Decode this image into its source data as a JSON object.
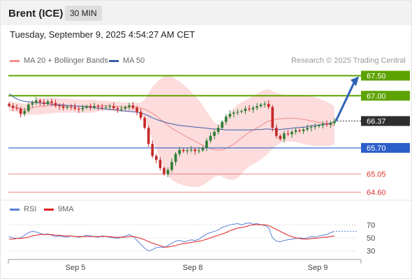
{
  "header": {
    "symbol": "Brent (ICE)",
    "timeframe": "30 MIN",
    "timestamp": "Tuesday, September 9, 2025 4:54:27 AM CET"
  },
  "legend": {
    "bollinger_label": "MA 20 + Bollinger Bands",
    "ma50_label": "MA 50",
    "credit": "Research © 2025 Trading Central",
    "rsi_label": "RSI",
    "rsi_ma_label": "9MA"
  },
  "colors": {
    "bollinger": "#f28a8a",
    "ma50": "#3a5da8",
    "up_candle": "#2e7d32",
    "down_candle": "#c62828",
    "resistance": "#5da300",
    "support": "#2e5ec9",
    "support_weak": "#e06060",
    "current": "#2d2d2d",
    "arrow": "#2f63b6",
    "rsi": "#5b7fd6",
    "rsi_ma": "#e01f1f"
  },
  "levels": [
    {
      "label": "67.50",
      "value": 67.5,
      "kind": "resistance"
    },
    {
      "label": "67.00",
      "value": 67.0,
      "kind": "resistance"
    },
    {
      "label": "66.37",
      "value": 66.37,
      "kind": "current"
    },
    {
      "label": "65.70",
      "value": 65.7,
      "kind": "support"
    },
    {
      "label": "65.05",
      "value": 65.05,
      "kind": "support_weak"
    },
    {
      "label": "64.60",
      "value": 64.6,
      "kind": "support_weak"
    }
  ],
  "rsi_ticks": [
    "70",
    "50",
    "30"
  ],
  "x_ticks": [
    "Sep 5",
    "Sep 8",
    "Sep 9"
  ],
  "chart_data": {
    "type": "candlestick",
    "y_range": [
      64.45,
      67.7
    ],
    "closes": [
      66.75,
      66.7,
      66.68,
      66.55,
      66.62,
      66.78,
      66.82,
      66.88,
      66.84,
      66.8,
      66.86,
      66.82,
      66.76,
      66.74,
      66.7,
      66.73,
      66.72,
      66.68,
      66.66,
      66.7,
      66.74,
      66.71,
      66.74,
      66.72,
      66.7,
      66.72,
      66.74,
      66.69,
      66.66,
      66.68,
      66.72,
      66.76,
      66.7,
      66.6,
      66.45,
      66.2,
      65.8,
      65.5,
      65.4,
      65.2,
      65.05,
      65.15,
      65.35,
      65.55,
      65.65,
      65.62,
      65.64,
      65.66,
      65.62,
      65.64,
      65.7,
      65.88,
      66.0,
      66.1,
      66.2,
      66.35,
      66.48,
      66.55,
      66.58,
      66.6,
      66.62,
      66.68,
      66.66,
      66.7,
      66.74,
      66.78,
      66.8,
      66.72,
      66.2,
      66.0,
      65.92,
      66.06,
      66.04,
      66.1,
      66.14,
      66.12,
      66.16,
      66.2,
      66.22,
      66.24,
      66.26,
      66.3,
      66.28,
      66.32,
      66.37
    ],
    "ma50": [
      67.05,
      66.98,
      66.92,
      66.88,
      66.86,
      66.85,
      66.84,
      66.83,
      66.82,
      66.81,
      66.8,
      66.79,
      66.78,
      66.77,
      66.77,
      66.76,
      66.75,
      66.75,
      66.74,
      66.73,
      66.72,
      66.71,
      66.7,
      66.69,
      66.68,
      66.67,
      66.66,
      66.65,
      66.64,
      66.63,
      66.62,
      66.61,
      66.6,
      66.59,
      66.57,
      66.54,
      66.5,
      66.45,
      66.41,
      66.38,
      66.35,
      66.32,
      66.3,
      66.28,
      66.26,
      66.25,
      66.24,
      66.23,
      66.22,
      66.21,
      66.2,
      66.19,
      66.18,
      66.17,
      66.17,
      66.16,
      66.15,
      66.15,
      66.15,
      66.15,
      66.15,
      66.15,
      66.15,
      66.15,
      66.16,
      66.16,
      66.17,
      66.17,
      66.16,
      66.16,
      66.16,
      66.17,
      66.18,
      66.19,
      66.2,
      66.21,
      66.22,
      66.23,
      66.25,
      66.26,
      66.27,
      66.29,
      66.3,
      66.32,
      66.34
    ],
    "rsi": [
      52,
      50,
      49,
      50,
      54,
      58,
      60,
      59,
      57,
      55,
      56,
      54,
      52,
      53,
      52,
      51,
      53,
      52,
      51,
      52,
      54,
      53,
      52,
      51,
      53,
      52,
      51,
      50,
      49,
      51,
      53,
      55,
      52,
      46,
      40,
      34,
      30,
      32,
      35,
      36,
      35,
      38,
      42,
      45,
      46,
      44,
      45,
      47,
      46,
      48,
      52,
      56,
      58,
      60,
      62,
      66,
      68,
      70,
      71,
      72,
      70,
      72,
      73,
      71,
      72,
      70,
      69,
      66,
      50,
      45,
      44,
      46,
      47,
      48,
      49,
      50,
      49,
      50,
      52,
      51,
      53,
      54,
      55,
      58,
      60
    ],
    "rsi_ma": [
      48,
      48,
      49,
      49,
      50,
      51,
      53,
      54,
      55,
      55,
      55,
      55,
      54,
      54,
      53,
      53,
      53,
      52,
      52,
      52,
      52,
      52,
      52,
      52,
      52,
      52,
      52,
      51,
      51,
      51,
      51,
      52,
      52,
      51,
      49,
      47,
      44,
      42,
      40,
      38,
      36,
      36,
      37,
      38,
      40,
      41,
      42,
      43,
      44,
      45,
      46,
      48,
      50,
      52,
      54,
      56,
      58,
      61,
      63,
      65,
      66,
      67,
      69,
      70,
      70,
      70,
      70,
      69,
      66,
      63,
      60,
      57,
      54,
      52,
      50,
      49,
      48,
      48,
      49,
      49,
      50,
      51,
      51,
      52,
      53
    ],
    "projection": {
      "from": 66.37,
      "to": 67.5
    }
  }
}
